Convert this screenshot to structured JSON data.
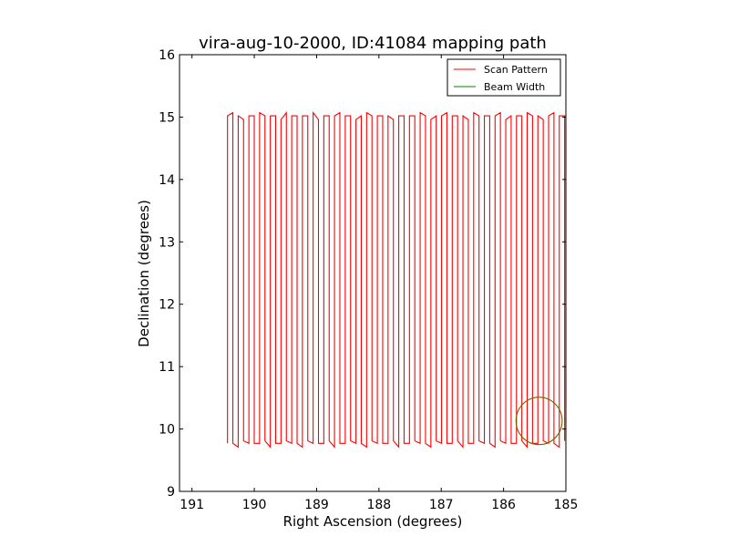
{
  "chart_data": {
    "type": "line",
    "title": "vira-aug-10-2000, ID:41084 mapping path",
    "xlabel": "Right Ascension (degrees)",
    "ylabel": "Declination (degrees)",
    "xlim": [
      191.2,
      185.0
    ],
    "ylim": [
      9,
      16
    ],
    "x_inverted": true,
    "xticks": [
      191,
      190,
      189,
      188,
      187,
      186,
      185
    ],
    "yticks": [
      9,
      10,
      11,
      12,
      13,
      14,
      15,
      16
    ],
    "legend_position": "top-right",
    "grid": false,
    "series": [
      {
        "name": "Scan Pattern",
        "color": "#ff0000",
        "ra_start": 190.43,
        "ra_end": 185.02,
        "n_legs": 64,
        "dec_top": 15.02,
        "dec_bottom": 9.77
      },
      {
        "name": "Beam Width",
        "color": "#008000",
        "shape": "circle",
        "center_ra": 185.43,
        "center_dec": 10.13,
        "radius_ra": 0.37,
        "radius_dec": 0.38
      }
    ]
  }
}
